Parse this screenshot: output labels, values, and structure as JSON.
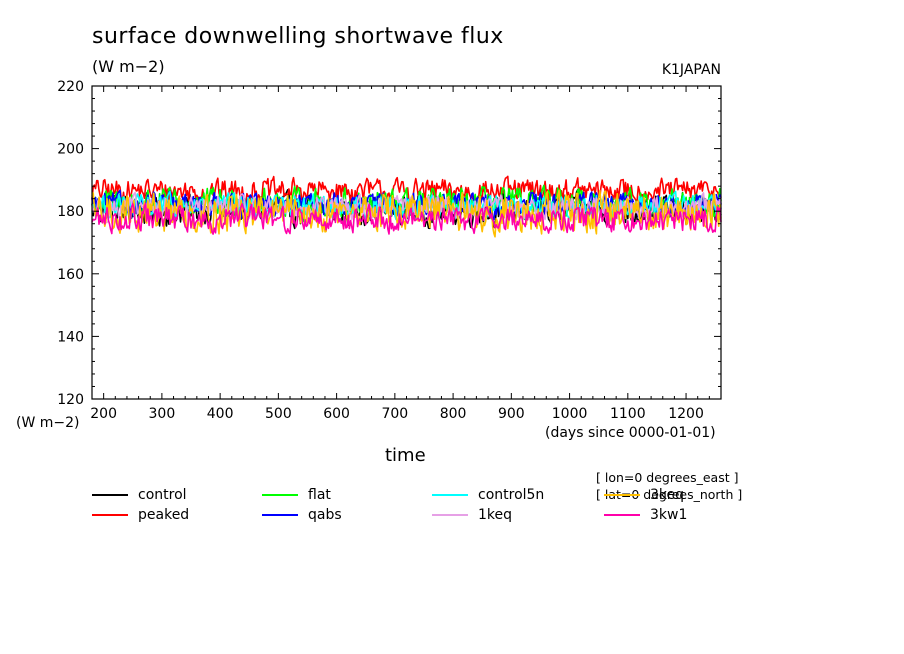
{
  "header": {
    "title": "surface downwelling shortwave flux",
    "units": "(W m−2)",
    "tag": "K1JAPAN"
  },
  "axes": {
    "y_unit": "(W m−2)",
    "x_unit": "(days since 0000-01-01)",
    "x_title": "time"
  },
  "notes": {
    "lon": "[ lon=0 degrees_east ]",
    "lat": "[ lat=0 degrees_north ]"
  },
  "chart_data": {
    "type": "line",
    "title": "surface downwelling shortwave flux",
    "xlabel": "time",
    "ylabel": "(W m−2)",
    "xlim": [
      180,
      1260
    ],
    "ylim": [
      120,
      220
    ],
    "x_ticks": [
      200,
      300,
      400,
      500,
      600,
      700,
      800,
      900,
      1000,
      1100,
      1200
    ],
    "y_ticks": [
      120,
      140,
      160,
      180,
      200,
      220
    ],
    "grid": false,
    "legend_position": "bottom",
    "series": [
      {
        "name": "control",
        "color": "#000000",
        "mean": 180.5,
        "range": [
          172,
          189
        ]
      },
      {
        "name": "peaked",
        "color": "#ff0000",
        "mean": 186.5,
        "range": [
          180,
          193
        ]
      },
      {
        "name": "flat",
        "color": "#00ff00",
        "mean": 182.5,
        "range": [
          175,
          191
        ]
      },
      {
        "name": "qabs",
        "color": "#0000ff",
        "mean": 182.0,
        "range": [
          176,
          189
        ]
      },
      {
        "name": "control5n",
        "color": "#00ffff",
        "mean": 181.5,
        "range": [
          175,
          188
        ]
      },
      {
        "name": "1keq",
        "color": "#e6a0e6",
        "mean": 181.0,
        "range": [
          175,
          188
        ]
      },
      {
        "name": "3keq",
        "color": "#ffbf00",
        "mean": 179.5,
        "range": [
          169,
          190
        ]
      },
      {
        "name": "3kw1",
        "color": "#ff00aa",
        "mean": 177.5,
        "range": [
          170,
          184
        ]
      }
    ]
  }
}
